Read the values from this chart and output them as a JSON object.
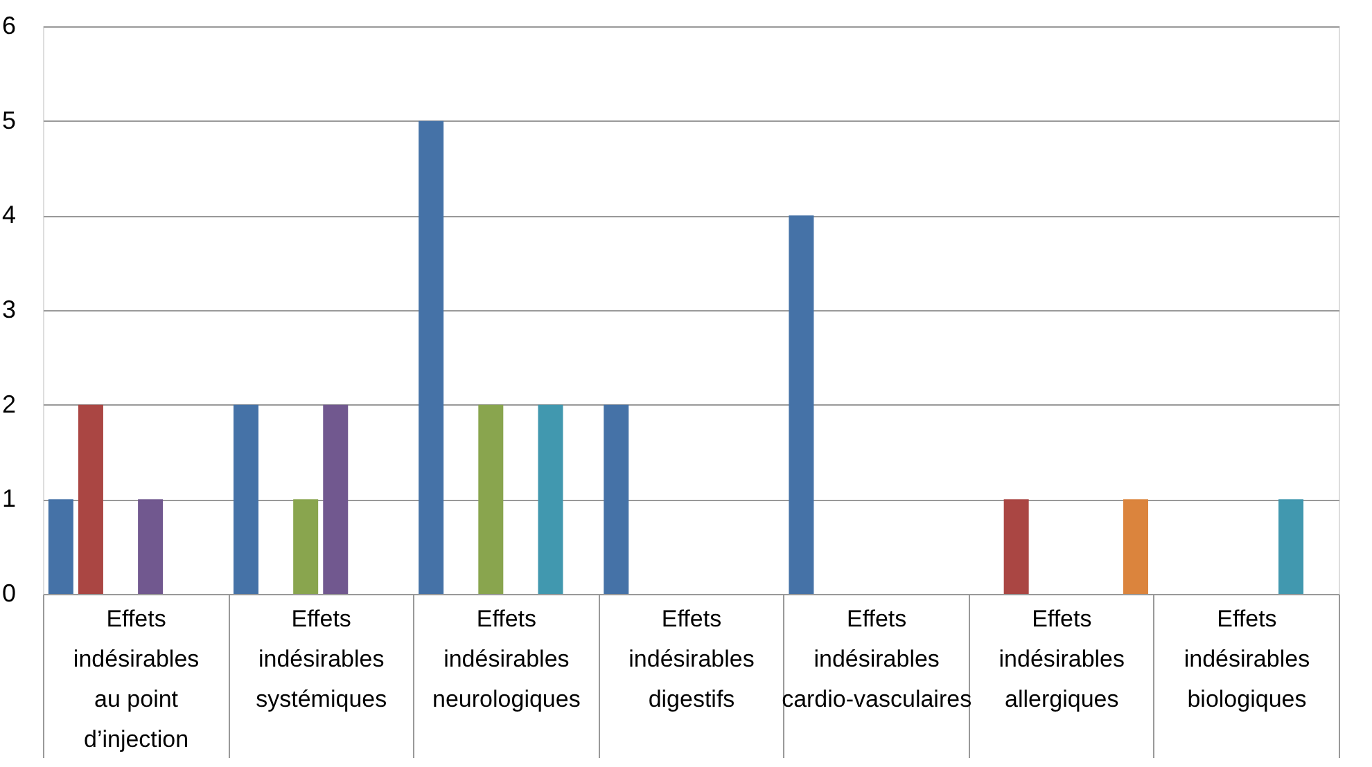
{
  "chart_data": {
    "type": "bar",
    "categories": [
      "Effets indésirables au point d’injection",
      "Effets indésirables systémiques",
      "Effets indésirables neurologiques",
      "Effets indésirables digestifs",
      "Effets indésirables cardio-vasculaires",
      "Effets indésirables allergiques",
      "Effets indésirables biologiques"
    ],
    "series": [
      {
        "color": "#4572a7",
        "values": [
          1,
          2,
          5,
          2,
          4,
          0,
          0
        ]
      },
      {
        "color": "#aa4643",
        "values": [
          2,
          0,
          0,
          0,
          0,
          1,
          0
        ]
      },
      {
        "color": "#89a54e",
        "values": [
          0,
          1,
          2,
          0,
          0,
          0,
          0
        ]
      },
      {
        "color": "#71588f",
        "values": [
          1,
          2,
          0,
          0,
          0,
          0,
          0
        ]
      },
      {
        "color": "#4198af",
        "values": [
          0,
          0,
          2,
          0,
          0,
          0,
          1
        ]
      },
      {
        "color": "#db843d",
        "values": [
          0,
          0,
          0,
          0,
          0,
          1,
          0
        ]
      }
    ],
    "ylim": [
      0,
      6
    ],
    "yticks": [
      0,
      1,
      2,
      3,
      4,
      5,
      6
    ],
    "grid": "y",
    "legend": false
  }
}
